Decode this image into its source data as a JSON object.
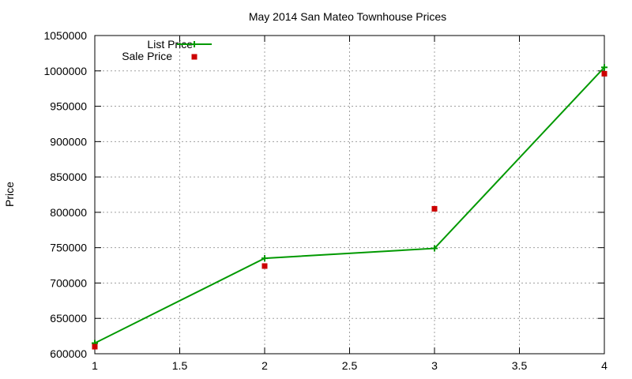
{
  "chart_data": {
    "type": "line",
    "title": "May 2014 San Mateo Townhouse Prices",
    "xlabel": "",
    "ylabel": "Price",
    "xlim": [
      1,
      4
    ],
    "ylim": [
      600000,
      1050000
    ],
    "x_ticks": [
      1,
      1.5,
      2,
      2.5,
      3,
      3.5,
      4
    ],
    "y_ticks": [
      600000,
      650000,
      700000,
      750000,
      800000,
      850000,
      900000,
      950000,
      1000000,
      1050000
    ],
    "grid": true,
    "legend_position": "top-left",
    "series": [
      {
        "name": "List Price",
        "style": "line-with-plus-markers",
        "color": "#009900",
        "points": [
          {
            "x": 1,
            "y": 615000
          },
          {
            "x": 2,
            "y": 735000
          },
          {
            "x": 3,
            "y": 749000
          },
          {
            "x": 4,
            "y": 1005000
          }
        ]
      },
      {
        "name": "Sale Price",
        "style": "square-markers",
        "color": "#cc0000",
        "points": [
          {
            "x": 1,
            "y": 610000
          },
          {
            "x": 2,
            "y": 724000
          },
          {
            "x": 3,
            "y": 805000
          },
          {
            "x": 4,
            "y": 996000
          }
        ]
      }
    ]
  }
}
